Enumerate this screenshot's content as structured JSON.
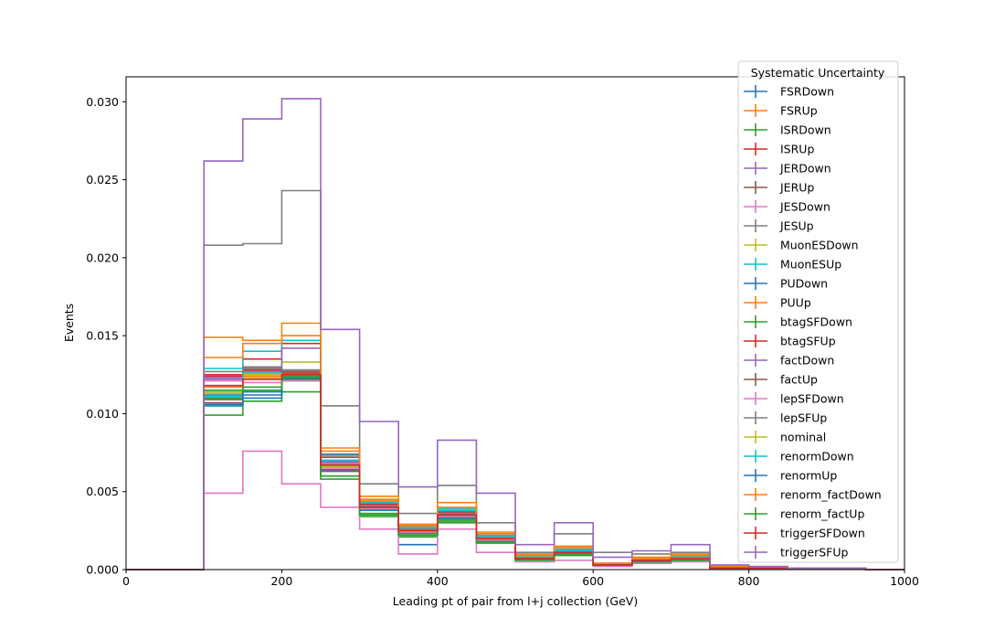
{
  "chart_data": {
    "type": "step-histogram",
    "title": "",
    "xlabel": "Leading pt of pair from l+j collection (GeV)",
    "ylabel": "Events",
    "xlim": [
      0,
      1000
    ],
    "ylim": [
      0,
      0.0316
    ],
    "x_ticks": [
      "0",
      "200",
      "400",
      "600",
      "800",
      "1000"
    ],
    "y_ticks": [
      "0.000",
      "0.005",
      "0.010",
      "0.015",
      "0.020",
      "0.025",
      "0.030"
    ],
    "x_tick_values": [
      0,
      200,
      400,
      600,
      800,
      1000
    ],
    "y_tick_values": [
      0,
      0.005,
      0.01,
      0.015,
      0.02,
      0.025,
      0.03
    ],
    "bin_edges": [
      0,
      50,
      100,
      150,
      200,
      250,
      300,
      350,
      400,
      450,
      500,
      550,
      600,
      650,
      700,
      750,
      800,
      850,
      900,
      950,
      1000
    ],
    "grid": false,
    "legend_placement": "top-right",
    "legend_title": "Systematic Uncertainty",
    "series": [
      {
        "name": "FSRDown",
        "color": "#1f77b4",
        "values": [
          0,
          0,
          0.0105,
          0.011,
          0.0122,
          0.0072,
          0.004,
          0.0016,
          0.0034,
          0.0018,
          0.0007,
          0.001,
          0.0003,
          0.0005,
          0.0007,
          0.0001,
          0.0001,
          0.0001,
          0.0001,
          0
        ]
      },
      {
        "name": "FSRUp",
        "color": "#ff7f0e",
        "values": [
          0,
          0,
          0.0117,
          0.0124,
          0.0124,
          0.0076,
          0.0044,
          0.0026,
          0.004,
          0.0022,
          0.0009,
          0.0013,
          0.0004,
          0.0007,
          0.0009,
          0.0001,
          0.0001,
          0.0001,
          0.0001,
          0
        ]
      },
      {
        "name": "ISRDown",
        "color": "#2ca02c",
        "values": [
          0,
          0,
          0.0099,
          0.0108,
          0.0114,
          0.0058,
          0.0034,
          0.0021,
          0.003,
          0.0017,
          0.0006,
          0.0009,
          0.0003,
          0.0005,
          0.0006,
          0.0001,
          0.0001,
          0.0001,
          0.0001,
          0
        ]
      },
      {
        "name": "ISRUp",
        "color": "#d62728",
        "values": [
          0,
          0,
          0.0125,
          0.0135,
          0.0145,
          0.007,
          0.0043,
          0.0029,
          0.0037,
          0.0021,
          0.0008,
          0.0012,
          0.0004,
          0.0006,
          0.0008,
          0.0001,
          0.0001,
          0.0001,
          0.0001,
          0
        ]
      },
      {
        "name": "JERDown",
        "color": "#9467bd",
        "values": [
          0,
          0,
          0.0122,
          0.0125,
          0.0122,
          0.0066,
          0.0041,
          0.0024,
          0.0034,
          0.0019,
          0.0007,
          0.0011,
          0.0003,
          0.0006,
          0.0007,
          0.0001,
          0.0001,
          0.0001,
          0.0001,
          0
        ]
      },
      {
        "name": "JERUp",
        "color": "#8c564b",
        "values": [
          0,
          0,
          0.0107,
          0.012,
          0.0128,
          0.0064,
          0.004,
          0.0025,
          0.0036,
          0.002,
          0.0008,
          0.0011,
          0.0003,
          0.0006,
          0.0007,
          0.0001,
          0.0001,
          0.0001,
          0.0001,
          0
        ]
      },
      {
        "name": "JESDown",
        "color": "#e377c2",
        "values": [
          0,
          0,
          0.0049,
          0.0076,
          0.0055,
          0.004,
          0.0026,
          0.001,
          0.0026,
          0.0011,
          0.0005,
          0.0006,
          0.0002,
          0.0004,
          0.0005,
          0.0001,
          0.0001,
          0.0001,
          0.0001,
          0
        ]
      },
      {
        "name": "JESUp",
        "color": "#7f7f7f",
        "values": [
          0,
          0,
          0.0208,
          0.0209,
          0.0243,
          0.0105,
          0.0055,
          0.0036,
          0.0054,
          0.003,
          0.0011,
          0.0023,
          0.0011,
          0.001,
          0.0011,
          0.0002,
          0.0001,
          0.0001,
          0.0001,
          0
        ]
      },
      {
        "name": "MuonESDown",
        "color": "#bcbd22",
        "values": [
          0,
          0,
          0.0113,
          0.0125,
          0.0133,
          0.0067,
          0.004,
          0.0025,
          0.0035,
          0.002,
          0.0007,
          0.0011,
          0.0003,
          0.0006,
          0.0007,
          0.0001,
          0.0001,
          0.0001,
          0.0001,
          0
        ]
      },
      {
        "name": "MuonESUp",
        "color": "#17becf",
        "values": [
          0,
          0,
          0.0129,
          0.014,
          0.0147,
          0.0074,
          0.0045,
          0.0027,
          0.0039,
          0.0022,
          0.0008,
          0.0013,
          0.0004,
          0.0007,
          0.0008,
          0.0001,
          0.0001,
          0.0001,
          0.0001,
          0
        ]
      },
      {
        "name": "PUDown",
        "color": "#1f77b4",
        "values": [
          0,
          0,
          0.0112,
          0.0112,
          0.0121,
          0.0074,
          0.0043,
          0.0025,
          0.0035,
          0.0021,
          0.0008,
          0.0012,
          0.0003,
          0.0006,
          0.0007,
          0.0001,
          0.0001,
          0.0001,
          0.0001,
          0
        ]
      },
      {
        "name": "PUUp",
        "color": "#ff7f0e",
        "values": [
          0,
          0,
          0.0149,
          0.0147,
          0.0158,
          0.0078,
          0.0047,
          0.0029,
          0.0043,
          0.0024,
          0.001,
          0.0015,
          0.0004,
          0.0008,
          0.001,
          0.0002,
          0.0001,
          0.0001,
          0.0001,
          0
        ]
      },
      {
        "name": "btagSFDown",
        "color": "#2ca02c",
        "values": [
          0,
          0,
          0.011,
          0.0115,
          0.0122,
          0.006,
          0.0035,
          0.0022,
          0.0031,
          0.0017,
          0.0006,
          0.001,
          0.0003,
          0.0005,
          0.0006,
          0.0001,
          0.0001,
          0.0001,
          0.0001,
          0
        ]
      },
      {
        "name": "btagSFUp",
        "color": "#d62728",
        "values": [
          0,
          0,
          0.0124,
          0.0128,
          0.0126,
          0.007,
          0.0042,
          0.0026,
          0.0036,
          0.002,
          0.0007,
          0.0011,
          0.0003,
          0.0006,
          0.0007,
          0.0001,
          0.0001,
          0.0001,
          0.0001,
          0
        ]
      },
      {
        "name": "factDown",
        "color": "#9467bd",
        "values": [
          0,
          0,
          0.0123,
          0.0127,
          0.0142,
          0.0069,
          0.0041,
          0.0025,
          0.0036,
          0.002,
          0.0007,
          0.0011,
          0.0003,
          0.0006,
          0.0007,
          0.0001,
          0.0001,
          0.0001,
          0.0001,
          0
        ]
      },
      {
        "name": "factUp",
        "color": "#8c564b",
        "values": [
          0,
          0,
          0.0109,
          0.0129,
          0.0127,
          0.0063,
          0.0039,
          0.0024,
          0.0034,
          0.0019,
          0.0007,
          0.0011,
          0.0003,
          0.0005,
          0.0007,
          0.0001,
          0.0001,
          0.0001,
          0.0001,
          0
        ]
      },
      {
        "name": "lepSFDown",
        "color": "#e377c2",
        "values": [
          0,
          0,
          0.0121,
          0.012,
          0.0121,
          0.0065,
          0.0039,
          0.0024,
          0.0034,
          0.0019,
          0.0007,
          0.0011,
          0.0003,
          0.0006,
          0.0007,
          0.0001,
          0.0001,
          0.0001,
          0.0001,
          0
        ]
      },
      {
        "name": "lepSFUp",
        "color": "#7f7f7f",
        "values": [
          0,
          0,
          0.0127,
          0.013,
          0.0128,
          0.0068,
          0.0041,
          0.0026,
          0.0036,
          0.002,
          0.0008,
          0.0011,
          0.0003,
          0.0006,
          0.0007,
          0.0001,
          0.0001,
          0.0001,
          0.0001,
          0
        ]
      },
      {
        "name": "nominal",
        "color": "#bcbd22",
        "values": [
          0,
          0,
          0.0114,
          0.0123,
          0.0124,
          0.0066,
          0.004,
          0.0025,
          0.0035,
          0.002,
          0.0007,
          0.0011,
          0.0003,
          0.0006,
          0.0007,
          0.0001,
          0.0001,
          0.0001,
          0.0001,
          0
        ]
      },
      {
        "name": "renormDown",
        "color": "#17becf",
        "values": [
          0,
          0,
          0.0111,
          0.0126,
          0.0125,
          0.007,
          0.0043,
          0.0027,
          0.0038,
          0.0021,
          0.0008,
          0.0012,
          0.0003,
          0.0006,
          0.0008,
          0.0001,
          0.0001,
          0.0001,
          0.0001,
          0
        ]
      },
      {
        "name": "renormUp",
        "color": "#1f77b4",
        "values": [
          0,
          0,
          0.0106,
          0.0114,
          0.0123,
          0.0063,
          0.0038,
          0.0023,
          0.0033,
          0.0018,
          0.0007,
          0.001,
          0.0003,
          0.0005,
          0.0006,
          0.0001,
          0.0001,
          0.0001,
          0.0001,
          0
        ]
      },
      {
        "name": "renorm_factDown",
        "color": "#ff7f0e",
        "values": [
          0,
          0,
          0.0136,
          0.0145,
          0.015,
          0.0073,
          0.0045,
          0.0028,
          0.004,
          0.0023,
          0.0009,
          0.0014,
          0.0004,
          0.0007,
          0.0009,
          0.0001,
          0.0001,
          0.0001,
          0.0001,
          0
        ]
      },
      {
        "name": "renorm_factUp",
        "color": "#2ca02c",
        "values": [
          0,
          0,
          0.0115,
          0.0117,
          0.0124,
          0.006,
          0.0036,
          0.0023,
          0.0032,
          0.0018,
          0.0007,
          0.001,
          0.0003,
          0.0005,
          0.0006,
          0.0001,
          0.0001,
          0.0001,
          0.0001,
          0
        ]
      },
      {
        "name": "triggerSFDown",
        "color": "#d62728",
        "values": [
          0,
          0,
          0.0118,
          0.0122,
          0.0125,
          0.0067,
          0.004,
          0.0025,
          0.0035,
          0.002,
          0.0007,
          0.0011,
          0.0003,
          0.0006,
          0.0007,
          0.0001,
          0.0001,
          0.0001,
          0.0001,
          0
        ]
      },
      {
        "name": "triggerSFUp",
        "color": "#9467bd",
        "values": [
          0,
          0,
          0.0262,
          0.0289,
          0.0302,
          0.0154,
          0.0095,
          0.0053,
          0.0083,
          0.0049,
          0.0016,
          0.003,
          0.0008,
          0.0012,
          0.0016,
          0.0003,
          0.0002,
          0.0001,
          0.0001,
          0
        ]
      }
    ]
  }
}
